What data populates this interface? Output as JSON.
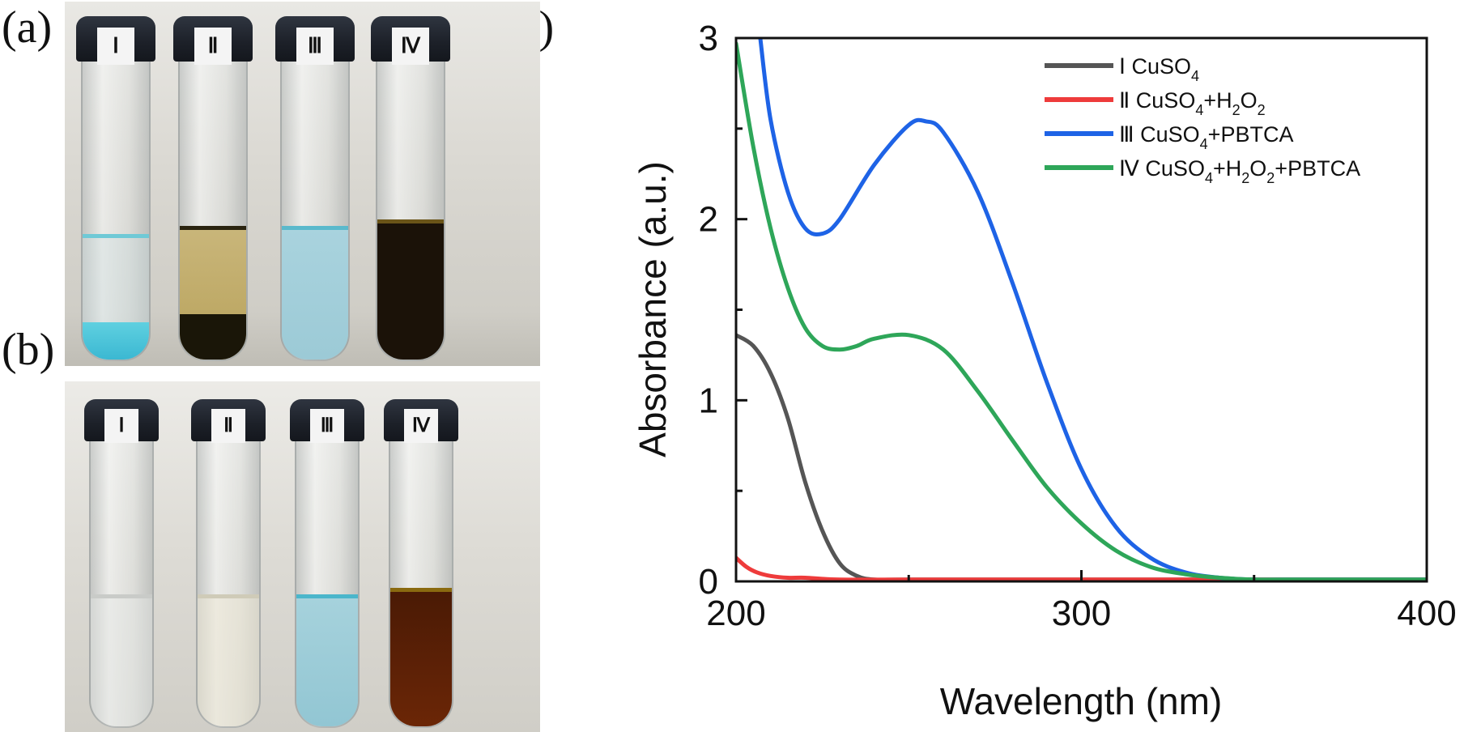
{
  "panels": {
    "a": "(a)",
    "b": "(b)",
    "c": "(c)"
  },
  "vial_labels": [
    "Ⅰ",
    "Ⅱ",
    "Ⅲ",
    "Ⅳ"
  ],
  "chart_data": {
    "type": "line",
    "xlabel": "Wavelength (nm)",
    "ylabel": "Absorbance (a.u.)",
    "xlim": [
      200,
      400
    ],
    "ylim": [
      0,
      3
    ],
    "xticks": [
      200,
      300,
      400
    ],
    "yticks": [
      0,
      1,
      2,
      3
    ],
    "grid": false,
    "legend_position": "top-right",
    "series": [
      {
        "name": "Ⅰ CuSO4",
        "name_parts": [
          [
            "Ⅰ ",
            "n"
          ],
          [
            "CuSO",
            "n"
          ],
          [
            "4",
            "sub"
          ]
        ],
        "color": "#555555",
        "x": [
          200,
          205,
          210,
          215,
          220,
          225,
          230,
          235,
          240,
          250,
          300,
          400
        ],
        "y": [
          1.36,
          1.3,
          1.15,
          0.9,
          0.55,
          0.28,
          0.1,
          0.03,
          0.01,
          0.01,
          0.01,
          0.01
        ]
      },
      {
        "name": "Ⅱ CuSO4+H2O2",
        "name_parts": [
          [
            "Ⅱ ",
            "n"
          ],
          [
            "CuSO",
            "n"
          ],
          [
            "4",
            "sub"
          ],
          [
            "+H",
            "n"
          ],
          [
            "2",
            "sub"
          ],
          [
            "O",
            "n"
          ],
          [
            "2",
            "sub"
          ]
        ],
        "color": "#ee3b3b",
        "x": [
          200,
          203,
          206,
          210,
          215,
          220,
          230,
          250,
          300,
          400
        ],
        "y": [
          0.13,
          0.08,
          0.05,
          0.03,
          0.02,
          0.02,
          0.01,
          0.01,
          0.01,
          0.01
        ]
      },
      {
        "name": "Ⅲ CuSO4+PBTCA",
        "name_parts": [
          [
            "Ⅲ ",
            "n"
          ],
          [
            "CuSO",
            "n"
          ],
          [
            "4",
            "sub"
          ],
          [
            "+PBTCA",
            "n"
          ]
        ],
        "color": "#1e63e6",
        "x": [
          207,
          210,
          215,
          220,
          225,
          230,
          240,
          250,
          255,
          260,
          270,
          280,
          290,
          300,
          310,
          320,
          330,
          340,
          350,
          360,
          400
        ],
        "y": [
          3.0,
          2.55,
          2.15,
          1.95,
          1.92,
          2.0,
          2.3,
          2.52,
          2.54,
          2.48,
          2.15,
          1.65,
          1.1,
          0.62,
          0.3,
          0.13,
          0.05,
          0.02,
          0.01,
          0.01,
          0.01
        ]
      },
      {
        "name": "Ⅳ CuSO4+H2O2+PBTCA",
        "name_parts": [
          [
            "Ⅳ ",
            "n"
          ],
          [
            "CuSO",
            "n"
          ],
          [
            "4",
            "sub"
          ],
          [
            "+H",
            "n"
          ],
          [
            "2",
            "sub"
          ],
          [
            "O",
            "n"
          ],
          [
            "2",
            "sub"
          ],
          [
            "+PBTCA",
            "n"
          ]
        ],
        "color": "#2ea659",
        "x": [
          200,
          205,
          210,
          215,
          220,
          225,
          230,
          235,
          240,
          250,
          260,
          270,
          280,
          290,
          300,
          310,
          320,
          330,
          340,
          350,
          360,
          400
        ],
        "y": [
          2.97,
          2.4,
          1.95,
          1.62,
          1.4,
          1.3,
          1.28,
          1.3,
          1.34,
          1.36,
          1.28,
          1.05,
          0.78,
          0.52,
          0.32,
          0.17,
          0.08,
          0.04,
          0.02,
          0.01,
          0.01,
          0.01
        ]
      }
    ]
  }
}
